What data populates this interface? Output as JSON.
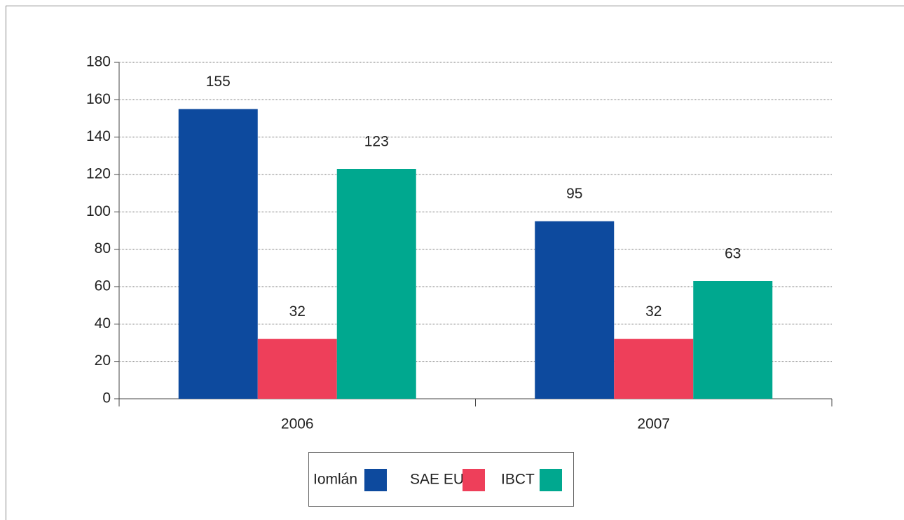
{
  "chart_data": {
    "type": "bar",
    "categories": [
      "2006",
      "2007"
    ],
    "series": [
      {
        "name": "Iomlán",
        "color": "#0d4a9e",
        "values": [
          155,
          95
        ]
      },
      {
        "name": "SAE EU",
        "color": "#ee3f5a",
        "values": [
          32,
          32
        ]
      },
      {
        "name": "IBCT",
        "color": "#00a88f",
        "values": [
          123,
          63
        ]
      }
    ],
    "ylim": [
      0,
      180
    ],
    "yticks": [
      0,
      20,
      40,
      60,
      80,
      100,
      120,
      140,
      160,
      180
    ],
    "grid": true
  }
}
